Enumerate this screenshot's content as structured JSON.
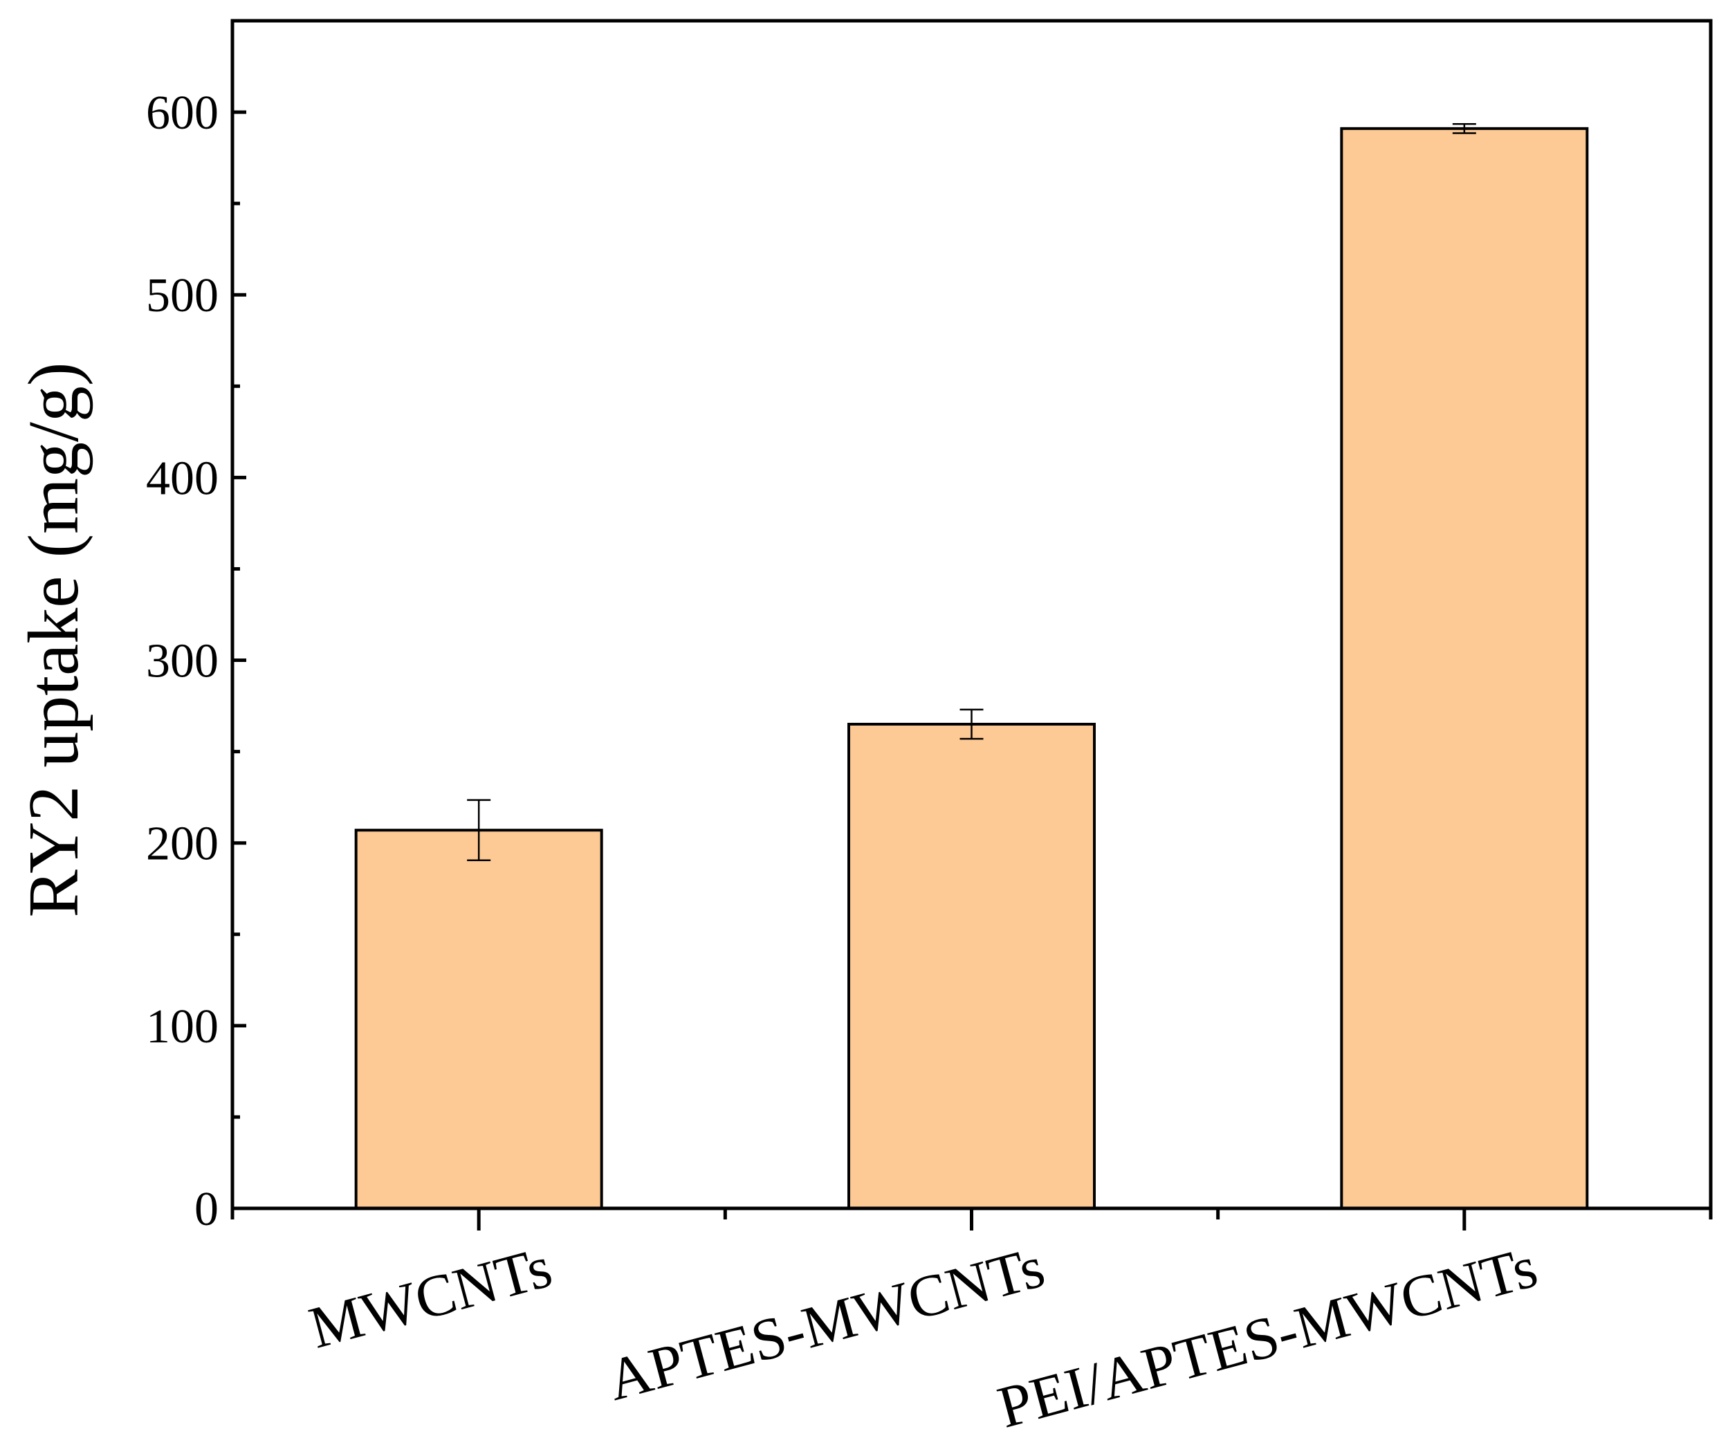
{
  "chart_data": {
    "type": "bar",
    "categories": [
      "MWCNTs",
      "APTES-MWCNTs",
      "PEI/APTES-MWCNTs"
    ],
    "values": [
      207,
      265,
      591
    ],
    "errors": [
      16.5,
      8,
      2.5
    ],
    "ylabel": "RY2 uptake (mg/g)",
    "xlabel": "",
    "ylim": [
      0,
      650
    ],
    "yticks": [
      0,
      100,
      200,
      300,
      400,
      500,
      600
    ],
    "ytick_labels": [
      "0",
      "100",
      "200",
      "300",
      "400",
      "500",
      "600"
    ],
    "grid": false,
    "bar_color": "#FDC994",
    "edge_color": "#000000"
  }
}
